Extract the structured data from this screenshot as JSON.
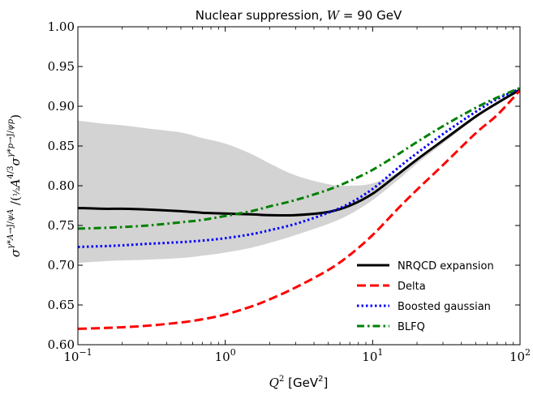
{
  "chart_data": {
    "type": "line",
    "title": "Nuclear suppression, W = 90 GeV",
    "xlabel": "Q² [GeV²]",
    "ylabel": "σ^{γ*A→J/ψ A} / (½ A^{4/3} σ^{γ*p→J/ψ p})",
    "xscale": "log",
    "xlim": [
      0.1,
      100
    ],
    "ylim": [
      0.6,
      1.0
    ],
    "x_ticks": [
      0.1,
      1,
      10,
      100
    ],
    "x_tick_labels": [
      "10",
      "10",
      "10",
      "10"
    ],
    "x_tick_exponents": [
      "−1",
      "0",
      "1",
      "2"
    ],
    "y_ticks": [
      0.6,
      0.65,
      0.7,
      0.75,
      0.8,
      0.85,
      0.9,
      0.95,
      1.0
    ],
    "y_tick_labels": [
      "0.60",
      "0.65",
      "0.70",
      "0.75",
      "0.80",
      "0.85",
      "0.90",
      "0.95",
      "1.00"
    ],
    "grid": false,
    "legend_position": "bottom-right",
    "band": {
      "x": [
        0.1,
        0.15,
        0.2,
        0.3,
        0.5,
        0.7,
        1,
        1.5,
        2,
        3,
        5,
        7,
        10,
        15,
        20,
        30,
        50,
        70,
        100
      ],
      "upper": [
        0.882,
        0.878,
        0.876,
        0.872,
        0.867,
        0.86,
        0.853,
        0.84,
        0.828,
        0.813,
        0.802,
        0.8,
        0.803,
        0.817,
        0.835,
        0.857,
        0.888,
        0.905,
        0.92
      ],
      "lower": [
        0.703,
        0.705,
        0.706,
        0.707,
        0.709,
        0.712,
        0.716,
        0.722,
        0.728,
        0.738,
        0.752,
        0.764,
        0.782,
        0.808,
        0.828,
        0.853,
        0.885,
        0.903,
        0.918
      ]
    },
    "series": [
      {
        "name": "NRQCD expansion",
        "color": "#000000",
        "dash": "solid",
        "x": [
          0.1,
          0.15,
          0.2,
          0.3,
          0.5,
          0.7,
          1,
          1.5,
          2,
          3,
          5,
          7,
          10,
          15,
          20,
          30,
          50,
          70,
          100
        ],
        "y": [
          0.772,
          0.771,
          0.771,
          0.77,
          0.768,
          0.766,
          0.765,
          0.764,
          0.763,
          0.763,
          0.767,
          0.775,
          0.79,
          0.815,
          0.833,
          0.857,
          0.887,
          0.904,
          0.921
        ]
      },
      {
        "name": "Delta",
        "color": "#ff0000",
        "dash": "dashed",
        "x": [
          0.1,
          0.15,
          0.2,
          0.3,
          0.5,
          0.7,
          1,
          1.5,
          2,
          3,
          5,
          7,
          10,
          15,
          20,
          30,
          50,
          70,
          100
        ],
        "y": [
          0.62,
          0.621,
          0.622,
          0.624,
          0.628,
          0.632,
          0.638,
          0.648,
          0.657,
          0.672,
          0.694,
          0.713,
          0.738,
          0.772,
          0.795,
          0.826,
          0.866,
          0.889,
          0.92
        ]
      },
      {
        "name": "Boosted gaussian",
        "color": "#0000ff",
        "dash": "dotted",
        "x": [
          0.1,
          0.15,
          0.2,
          0.3,
          0.5,
          0.7,
          1,
          1.5,
          2,
          3,
          5,
          7,
          10,
          15,
          20,
          30,
          50,
          70,
          100
        ],
        "y": [
          0.723,
          0.724,
          0.725,
          0.727,
          0.729,
          0.731,
          0.734,
          0.739,
          0.744,
          0.752,
          0.766,
          0.778,
          0.796,
          0.823,
          0.841,
          0.865,
          0.893,
          0.909,
          0.922
        ]
      },
      {
        "name": "BLFQ",
        "color": "#008000",
        "dash": "dashdot",
        "x": [
          0.1,
          0.15,
          0.2,
          0.3,
          0.5,
          0.7,
          1,
          1.5,
          2,
          3,
          5,
          7,
          10,
          15,
          20,
          30,
          50,
          70,
          100
        ],
        "y": [
          0.746,
          0.747,
          0.748,
          0.75,
          0.754,
          0.757,
          0.762,
          0.768,
          0.774,
          0.782,
          0.795,
          0.806,
          0.82,
          0.84,
          0.855,
          0.875,
          0.898,
          0.911,
          0.923
        ]
      }
    ]
  }
}
